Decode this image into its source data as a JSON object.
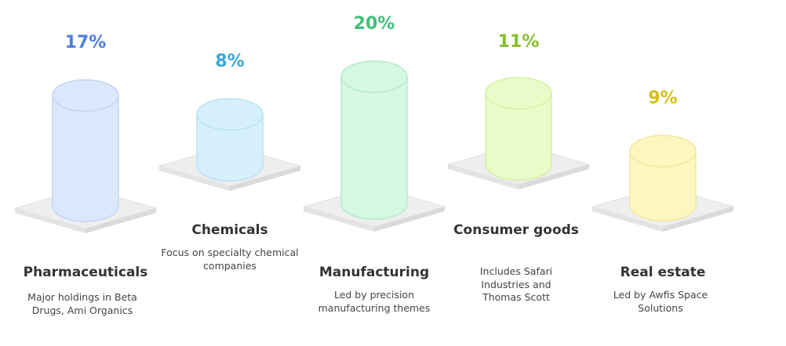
{
  "items": [
    {
      "value": "17%",
      "label": "Pharmaceuticals",
      "description": "Major holdings in Beta Drugs, Ami Organics",
      "fill": "#dbe7fb",
      "stroke": "#c3d4f3",
      "accent": "#4f7fe0"
    },
    {
      "value": "8%",
      "label": "Chemicals",
      "description": "Focus on specialty chemical companies",
      "fill": "#d6f0fb",
      "stroke": "#b8e2f3",
      "accent": "#39a7d8"
    },
    {
      "value": "20%",
      "label": "Manufacturing",
      "description": "Led by precision manufacturing themes",
      "fill": "#d6f7e3",
      "stroke": "#b4ebc9",
      "accent": "#3fbf78"
    },
    {
      "value": "11%",
      "label": "Consumer goods",
      "description": "Includes Safari Industries and Thomas Scott",
      "fill": "#eafac8",
      "stroke": "#d6efa6",
      "accent": "#84bf2e"
    },
    {
      "value": "9%",
      "label": "Real estate",
      "description": "Led by Awfis Space Solutions",
      "fill": "#fdf6bf",
      "stroke": "#f1e79a",
      "accent": "#d4bf16"
    }
  ]
}
